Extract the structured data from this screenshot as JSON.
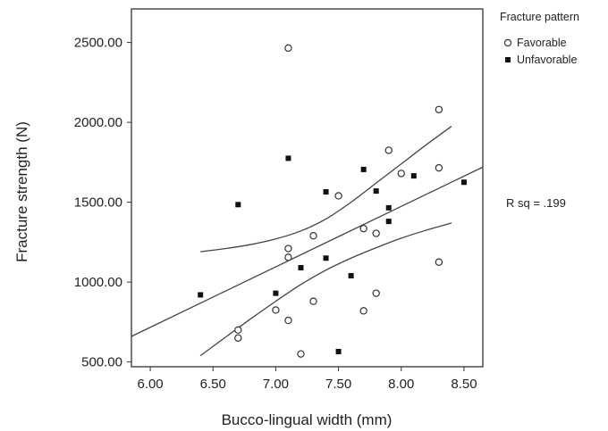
{
  "chart_data": {
    "type": "scatter",
    "title": "",
    "xlabel": "Bucco-lingual width (mm)",
    "ylabel": "Fracture strength (N)",
    "xlim": [
      5.85,
      8.65
    ],
    "ylim": [
      470,
      2710
    ],
    "x_ticks": [
      6.0,
      6.5,
      7.0,
      7.5,
      8.0,
      8.5
    ],
    "x_tick_labels": [
      "6.00",
      "6.50",
      "7.00",
      "7.50",
      "8.00",
      "8.50"
    ],
    "y_ticks": [
      500,
      1000,
      1500,
      2000,
      2500
    ],
    "y_tick_labels": [
      "500.00",
      "1000.00",
      "1500.00",
      "2000.00",
      "2500.00"
    ],
    "grid": false,
    "legend": {
      "title": "Fracture pattern",
      "placement": "outside-top-right"
    },
    "series": [
      {
        "name": "Favorable",
        "marker": "open-circle",
        "color": "#333333",
        "points": [
          [
            7.1,
            2465
          ],
          [
            8.3,
            2080
          ],
          [
            7.9,
            1825
          ],
          [
            8.3,
            1715
          ],
          [
            8.0,
            1680
          ],
          [
            7.5,
            1540
          ],
          [
            7.7,
            1335
          ],
          [
            7.3,
            1290
          ],
          [
            7.8,
            1305
          ],
          [
            7.1,
            1210
          ],
          [
            7.1,
            1155
          ],
          [
            8.3,
            1125
          ],
          [
            7.8,
            930
          ],
          [
            7.3,
            880
          ],
          [
            7.0,
            825
          ],
          [
            7.7,
            820
          ],
          [
            7.1,
            760
          ],
          [
            6.7,
            700
          ],
          [
            6.7,
            650
          ],
          [
            7.2,
            550
          ]
        ]
      },
      {
        "name": "Unfavorable",
        "marker": "filled-square",
        "color": "#111111",
        "points": [
          [
            7.1,
            1775
          ],
          [
            7.7,
            1705
          ],
          [
            8.1,
            1665
          ],
          [
            8.5,
            1625
          ],
          [
            7.4,
            1565
          ],
          [
            7.8,
            1570
          ],
          [
            6.7,
            1485
          ],
          [
            7.9,
            1465
          ],
          [
            7.9,
            1380
          ],
          [
            7.4,
            1150
          ],
          [
            7.2,
            1090
          ],
          [
            7.6,
            1040
          ],
          [
            7.0,
            930
          ],
          [
            6.4,
            920
          ],
          [
            7.5,
            565
          ]
        ]
      }
    ],
    "fit_line": {
      "x": [
        5.85,
        8.65
      ],
      "y": [
        660,
        1720
      ],
      "color": "#444444"
    },
    "confidence_band": {
      "color": "#444444",
      "upper": {
        "x": [
          6.4,
          6.6,
          6.8,
          7.0,
          7.2,
          7.4,
          7.6,
          7.8,
          8.0,
          8.2,
          8.4
        ],
        "y": [
          1190,
          1210,
          1235,
          1270,
          1320,
          1395,
          1500,
          1620,
          1740,
          1860,
          1975
        ]
      },
      "lower": {
        "x": [
          6.4,
          6.6,
          6.8,
          7.0,
          7.2,
          7.4,
          7.6,
          7.8,
          8.0,
          8.2,
          8.4
        ],
        "y": [
          540,
          655,
          770,
          880,
          985,
          1075,
          1150,
          1215,
          1275,
          1325,
          1370
        ]
      }
    },
    "annotation": "R sq = .199"
  }
}
